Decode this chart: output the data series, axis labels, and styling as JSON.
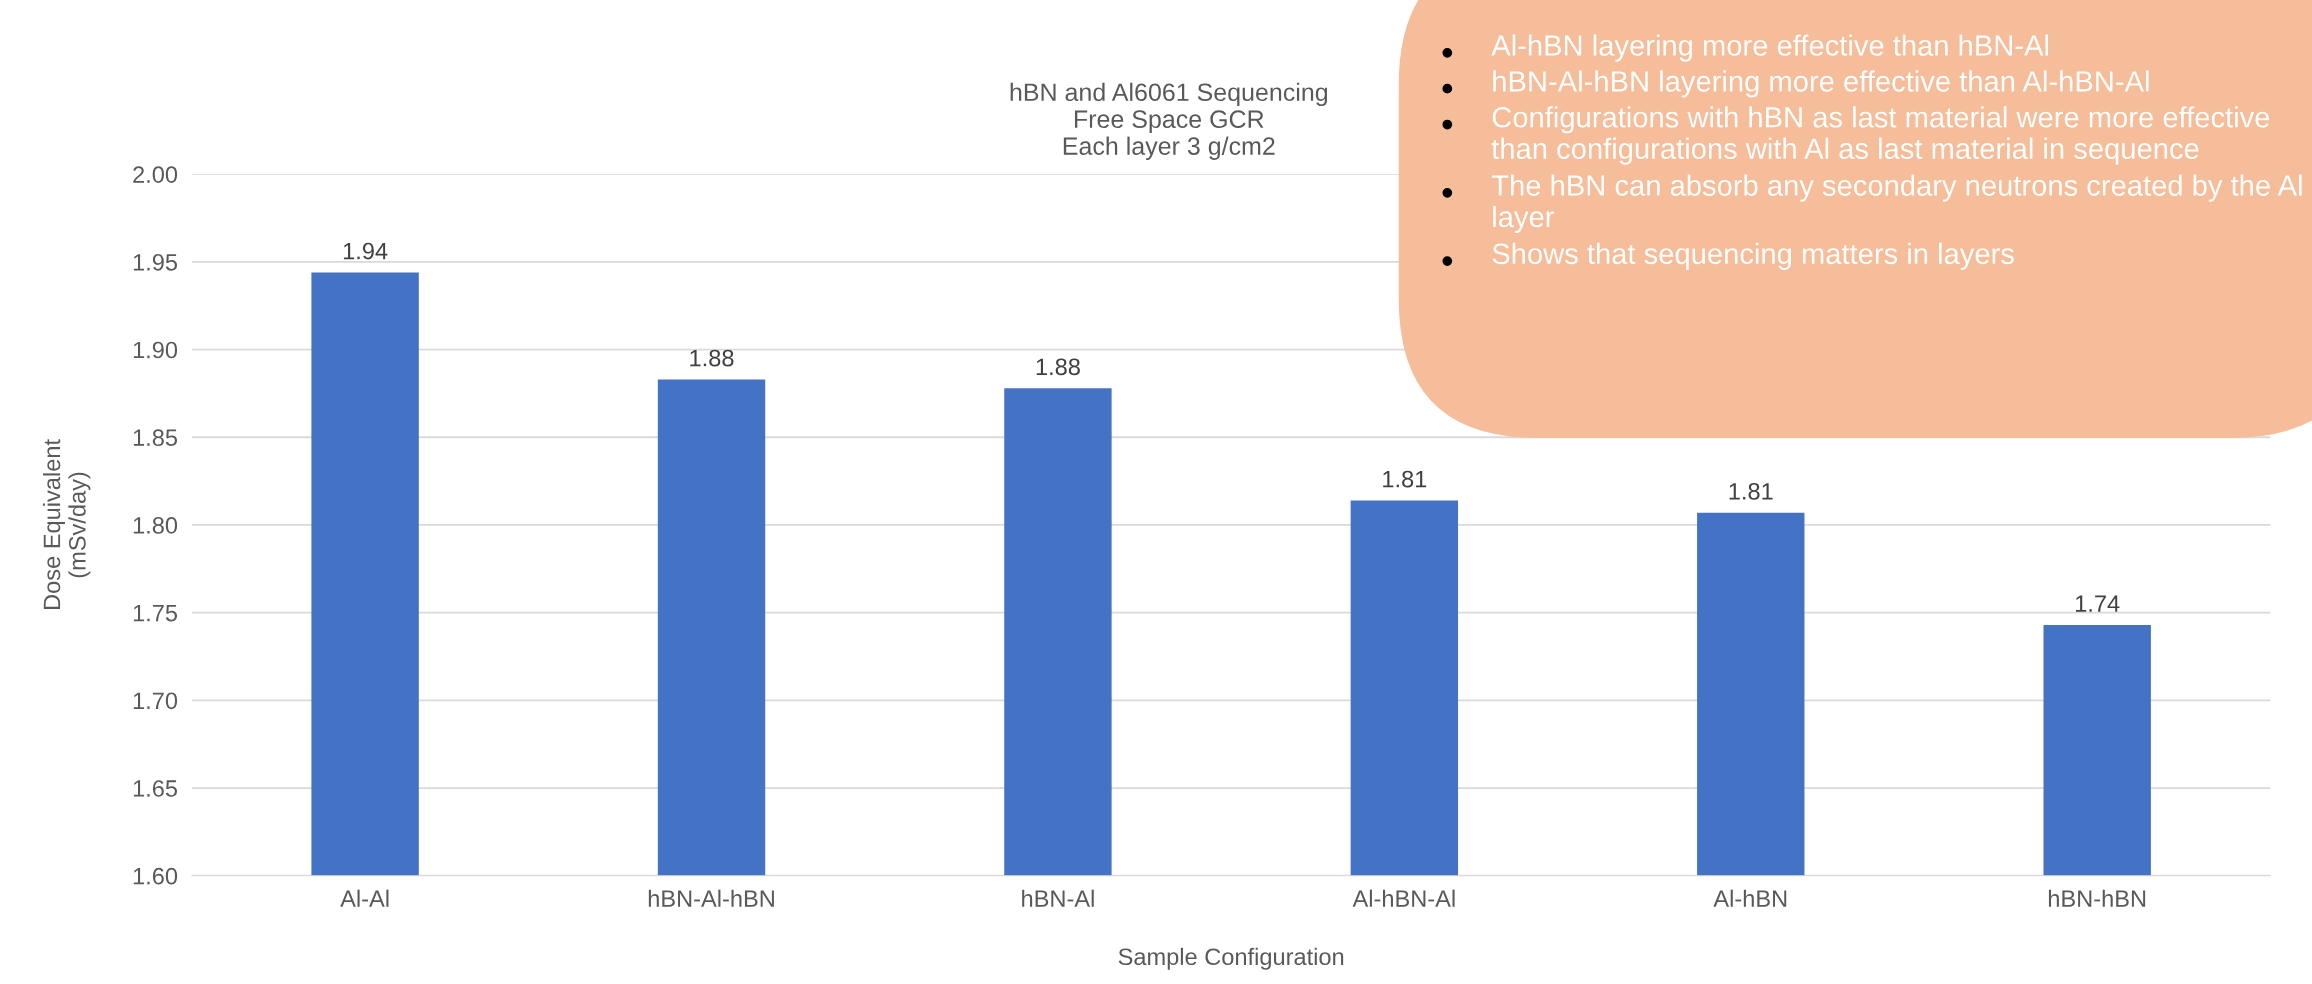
{
  "chart_data": {
    "type": "bar",
    "title": "hBN and Al6061 Sequencing\nFree Space GCR\nEach layer 3 g/cm2",
    "xlabel": "Sample Configuration",
    "ylabel": "Dose Equivalent\n(mSv/day)",
    "categories": [
      "Al-Al",
      "hBN-Al-hBN",
      "hBN-Al",
      "Al-hBN-Al",
      "Al-hBN",
      "hBN-hBN"
    ],
    "values": [
      1.944,
      1.883,
      1.878,
      1.814,
      1.807,
      1.743
    ],
    "value_labels": [
      "1.94",
      "1.88",
      "1.88",
      "1.81",
      "1.81",
      "1.74"
    ],
    "color": "#4472c4",
    "ylim": [
      1.6,
      2.0
    ],
    "yticks": [
      {
        "value": 1.6,
        "label": "1.60"
      },
      {
        "value": 1.65,
        "label": "1.65"
      },
      {
        "value": 1.7,
        "label": "1.70"
      },
      {
        "value": 1.75,
        "label": "1.75"
      },
      {
        "value": 1.8,
        "label": "1.80"
      },
      {
        "value": 1.85,
        "label": "1.85"
      },
      {
        "value": 1.9,
        "label": "1.90"
      },
      {
        "value": 1.95,
        "label": "1.95"
      },
      {
        "value": 2.0,
        "label": "2.00"
      }
    ],
    "grid": "y",
    "legend": false,
    "annotations": [
      "Al-hBN layering more effective than hBN-Al",
      "hBN-Al-hBN layering more effective than Al-hBN-Al",
      "Configurations with hBN as last material were more effective than configurations with Al as last material in sequence",
      "The hBN can absorb any secondary neutrons created by the Al layer",
      "Shows that sequencing matters in layers"
    ]
  }
}
